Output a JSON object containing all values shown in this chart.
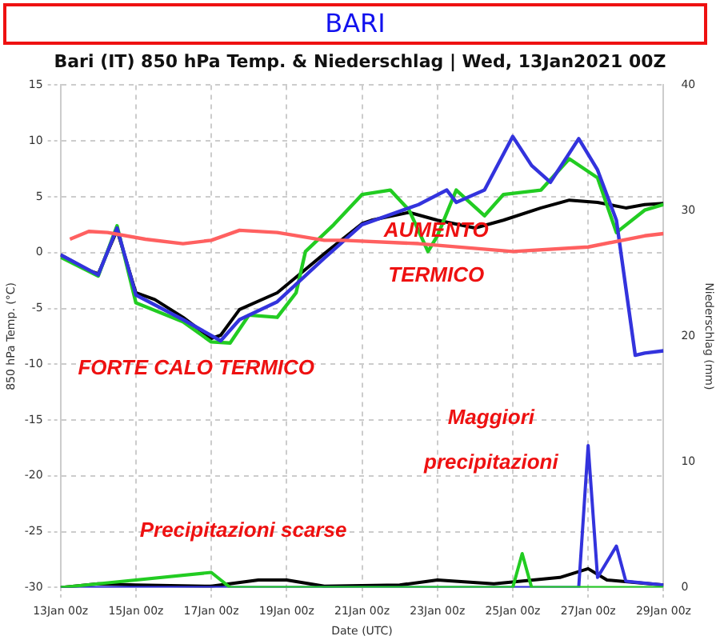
{
  "chart_data": {
    "type": "line",
    "title": "BARI",
    "subtitle": "Bari  (IT)  850 hPa Temp. & Niederschlag | Wed, 13Jan2021 00Z",
    "xlabel": "Date (UTC)",
    "ylabel": "850 hPa Temp. (°C)",
    "y2label": "Niederschlag (mm)",
    "xlim": [
      "2021-01-13T00:00",
      "2021-01-29T00:00"
    ],
    "xticks": [
      {
        "value": "2021-01-13T00:00",
        "label": "13Jan 00z"
      },
      {
        "value": "2021-01-15T00:00",
        "label": "15Jan 00z"
      },
      {
        "value": "2021-01-17T00:00",
        "label": "17Jan 00z"
      },
      {
        "value": "2021-01-19T00:00",
        "label": "19Jan 00z"
      },
      {
        "value": "2021-01-21T00:00",
        "label": "21Jan 00z"
      },
      {
        "value": "2021-01-23T00:00",
        "label": "23Jan 00z"
      },
      {
        "value": "2021-01-25T00:00",
        "label": "25Jan 00z"
      },
      {
        "value": "2021-01-27T00:00",
        "label": "27Jan 00z"
      },
      {
        "value": "2021-01-29T00:00",
        "label": "29Jan 00z"
      }
    ],
    "ylim": [
      -30,
      15
    ],
    "yticks": [
      -30,
      -25,
      -20,
      -15,
      -10,
      -5,
      0,
      5,
      10,
      15
    ],
    "y2lim": [
      0,
      40
    ],
    "y2ticks": [
      0,
      10,
      20,
      30,
      40
    ],
    "grid": true,
    "legend": false,
    "marker": "none",
    "line_style": "solid",
    "series": [
      {
        "color": "#ff6060",
        "x": [
          "2021-01-13T06:00",
          "2021-01-13T18:00",
          "2021-01-14T06:00",
          "2021-01-15T06:00",
          "2021-01-16T06:00",
          "2021-01-17T00:00",
          "2021-01-17T18:00",
          "2021-01-18T18:00",
          "2021-01-20T00:00",
          "2021-01-20T12:00",
          "2021-01-22T12:00",
          "2021-01-25T00:00",
          "2021-01-27T00:00",
          "2021-01-28T12:00",
          "2021-01-29T00:00"
        ],
        "values": [
          1.2,
          1.9,
          1.8,
          1.2,
          0.8,
          1.1,
          2.0,
          1.8,
          1.1,
          1.1,
          0.8,
          0.1,
          0.5,
          1.5,
          1.7
        ]
      },
      {
        "color": "#3333dd",
        "x": [
          "2021-01-13T00:00",
          "2021-01-14T00:00",
          "2021-01-14T12:00",
          "2021-01-15T00:00",
          "2021-01-16T06:00",
          "2021-01-17T06:00",
          "2021-01-17T18:00",
          "2021-01-18T18:00",
          "2021-01-20T00:00",
          "2021-01-21T00:00",
          "2021-01-22T12:00",
          "2021-01-23T06:00",
          "2021-01-23T12:00",
          "2021-01-24T06:00",
          "2021-01-25T00:00",
          "2021-01-25T12:00",
          "2021-01-26T00:00",
          "2021-01-26T18:00",
          "2021-01-27T06:00",
          "2021-01-27T18:00",
          "2021-01-28T06:00",
          "2021-01-28T12:00",
          "2021-01-29T00:00"
        ],
        "values": [
          -0.2,
          -2.0,
          2.2,
          -3.8,
          -6,
          -7.9,
          -6,
          -4.4,
          -0.5,
          2.5,
          4.3,
          5.6,
          4.5,
          5.6,
          10.4,
          7.8,
          6.3,
          10.2,
          7.4,
          2.9,
          -9.2,
          -9.0,
          -8.8
        ]
      },
      {
        "color": "#22cc22",
        "x": [
          "2021-01-13T00:00",
          "2021-01-14T00:00",
          "2021-01-14T12:00",
          "2021-01-15T00:00",
          "2021-01-16T06:00",
          "2021-01-17T00:00",
          "2021-01-17T12:00",
          "2021-01-18T00:00",
          "2021-01-18T18:00",
          "2021-01-19T06:00",
          "2021-01-19T12:00",
          "2021-01-20T06:00",
          "2021-01-21T00:00",
          "2021-01-21T18:00",
          "2021-01-22T06:00",
          "2021-01-22T18:00",
          "2021-01-23T00:00",
          "2021-01-23T12:00",
          "2021-01-24T06:00",
          "2021-01-24T18:00",
          "2021-01-25T18:00",
          "2021-01-26T12:00",
          "2021-01-27T06:00",
          "2021-01-27T18:00",
          "2021-01-28T12:00",
          "2021-01-29T00:00"
        ],
        "values": [
          -0.4,
          -2.1,
          2.4,
          -4.5,
          -6.2,
          -8.0,
          -8.1,
          -5.6,
          -5.8,
          -3.6,
          0.1,
          2.5,
          5.2,
          5.6,
          3.8,
          0.1,
          1.5,
          5.6,
          3.3,
          5.2,
          5.6,
          8.4,
          6.7,
          1.8,
          3.8,
          4.3
        ]
      },
      {
        "color": "#000000",
        "x": [
          "2021-01-13T00:00",
          "2021-01-13T18:00",
          "2021-01-14T00:00",
          "2021-01-14T12:00",
          "2021-01-15T00:00",
          "2021-01-15T12:00",
          "2021-01-16T06:00",
          "2021-01-17T00:00",
          "2021-01-17T06:00",
          "2021-01-17T18:00",
          "2021-01-18T18:00",
          "2021-01-19T06:00",
          "2021-01-20T00:00",
          "2021-01-21T00:00",
          "2021-01-21T06:00",
          "2021-01-22T06:00",
          "2021-01-23T00:00",
          "2021-01-24T00:00",
          "2021-01-24T18:00",
          "2021-01-25T18:00",
          "2021-01-26T12:00",
          "2021-01-27T06:00",
          "2021-01-28T00:00",
          "2021-01-28T12:00",
          "2021-01-29T00:00"
        ],
        "values": [
          -0.2,
          -1.6,
          -1.9,
          2.0,
          -3.6,
          -4.2,
          -5.8,
          -7.7,
          -7.4,
          -5.1,
          -3.6,
          -2.2,
          -0.1,
          2.6,
          2.9,
          3.6,
          2.9,
          2.2,
          2.9,
          4.0,
          4.7,
          4.5,
          4.0,
          4.3,
          4.4
        ]
      },
      {
        "color": "#22cc22",
        "axis": "y2",
        "x": [
          "2021-01-13T00:00",
          "2021-01-17T00:00",
          "2021-01-17T12:00",
          "2021-01-25T00:00",
          "2021-01-25T06:00",
          "2021-01-25T12:00",
          "2021-01-29T00:00"
        ],
        "values": [
          0,
          1.2,
          0,
          0,
          2.7,
          0,
          0
        ]
      },
      {
        "color": "#3333dd",
        "axis": "y2",
        "x": [
          "2021-01-13T00:00",
          "2021-01-26T18:00",
          "2021-01-27T00:00",
          "2021-01-27T06:00",
          "2021-01-27T18:00",
          "2021-01-28T00:00",
          "2021-01-29T00:00"
        ],
        "values": [
          0,
          0,
          11.3,
          0.8,
          3.3,
          0.5,
          0.2
        ]
      },
      {
        "color": "#000000",
        "axis": "y2",
        "x": [
          "2021-01-13T00:00",
          "2021-01-14T00:00",
          "2021-01-15T00:00",
          "2021-01-17T00:00",
          "2021-01-18T06:00",
          "2021-01-19T00:00",
          "2021-01-20T00:00",
          "2021-01-22T00:00",
          "2021-01-23T00:00",
          "2021-01-24T12:00",
          "2021-01-26T06:00",
          "2021-01-27T00:00",
          "2021-01-27T12:00",
          "2021-01-29T00:00"
        ],
        "values": [
          0,
          0.3,
          0.2,
          0.1,
          0.6,
          0.6,
          0.1,
          0.2,
          0.6,
          0.3,
          0.8,
          1.5,
          0.6,
          0.2
        ]
      }
    ],
    "annotations": [
      "FORTE CALO TERMICO",
      "AUMENTO\nTERMICO",
      "Precipitazioni scarse",
      "Maggiori\nprecipitazioni"
    ]
  }
}
